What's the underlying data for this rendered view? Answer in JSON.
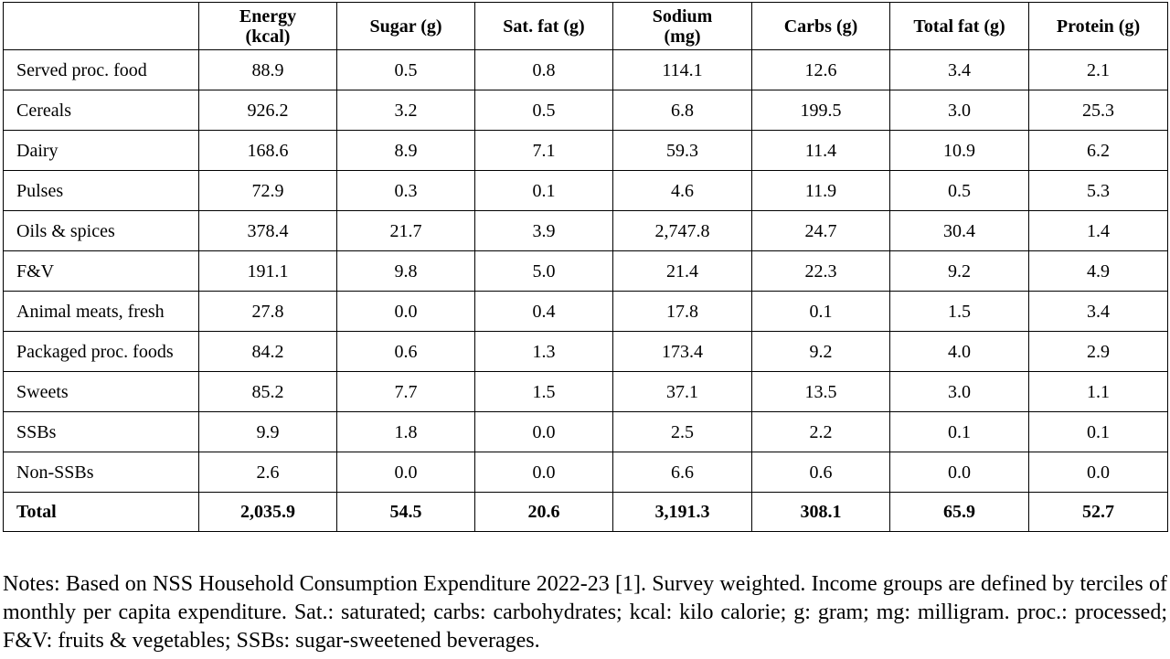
{
  "table": {
    "headers": [
      "",
      "Energy (kcal)",
      "Sugar (g)",
      "Sat. fat (g)",
      "Sodium (mg)",
      "Carbs (g)",
      "Total fat (g)",
      "Protein (g)"
    ],
    "rows": [
      [
        "Served proc. food",
        "88.9",
        "0.5",
        "0.8",
        "114.1",
        "12.6",
        "3.4",
        "2.1"
      ],
      [
        "Cereals",
        "926.2",
        "3.2",
        "0.5",
        "6.8",
        "199.5",
        "3.0",
        "25.3"
      ],
      [
        "Dairy",
        "168.6",
        "8.9",
        "7.1",
        "59.3",
        "11.4",
        "10.9",
        "6.2"
      ],
      [
        "Pulses",
        "72.9",
        "0.3",
        "0.1",
        "4.6",
        "11.9",
        "0.5",
        "5.3"
      ],
      [
        "Oils & spices",
        "378.4",
        "21.7",
        "3.9",
        "2,747.8",
        "24.7",
        "30.4",
        "1.4"
      ],
      [
        "F&V",
        "191.1",
        "9.8",
        "5.0",
        "21.4",
        "22.3",
        "9.2",
        "4.9"
      ],
      [
        "Animal meats, fresh",
        "27.8",
        "0.0",
        "0.4",
        "17.8",
        "0.1",
        "1.5",
        "3.4"
      ],
      [
        "Packaged proc. foods",
        "84.2",
        "0.6",
        "1.3",
        "173.4",
        "9.2",
        "4.0",
        "2.9"
      ],
      [
        "Sweets",
        "85.2",
        "7.7",
        "1.5",
        "37.1",
        "13.5",
        "3.0",
        "1.1"
      ],
      [
        "SSBs",
        "9.9",
        "1.8",
        "0.0",
        "2.5",
        "2.2",
        "0.1",
        "0.1"
      ],
      [
        "Non-SSBs",
        "2.6",
        "0.0",
        "0.0",
        "6.6",
        "0.6",
        "0.0",
        "0.0"
      ]
    ],
    "total": [
      "Total",
      "2,035.9",
      "54.5",
      "20.6",
      "3,191.3",
      "308.1",
      "65.9",
      "52.7"
    ]
  },
  "notes": "Notes: Based on NSS Household Consumption Expenditure 2022-23 [1]. Survey weighted. Income groups are defined by terciles of monthly per capita expenditure. Sat.: saturated; carbs: carbohydrates; kcal: kilo calorie; g: gram; mg: milligram. proc.: processed; F&V: fruits & vegetables; SSBs: sugar-sweetened beverages."
}
